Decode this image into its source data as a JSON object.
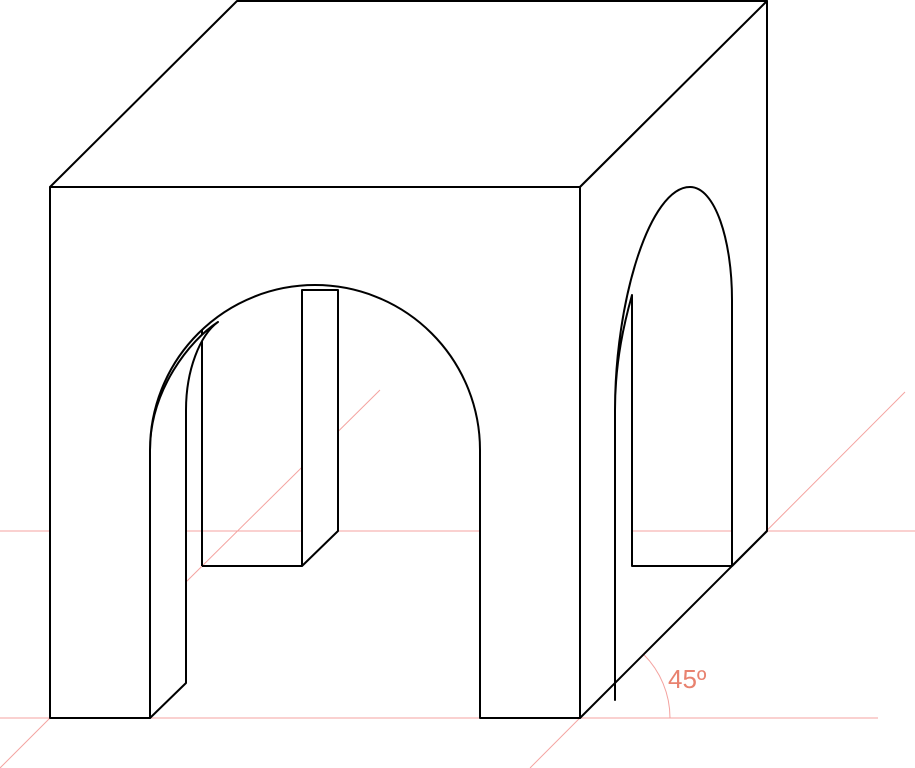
{
  "angle_label": "45º"
}
